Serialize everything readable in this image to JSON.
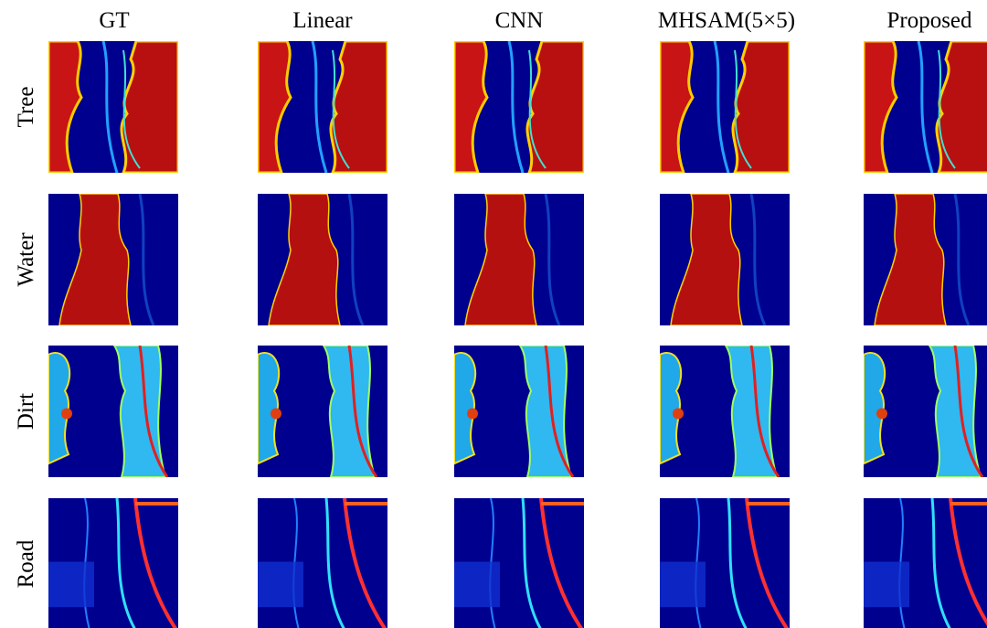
{
  "columns": [
    "GT",
    "Linear",
    "CNN",
    "MHSAM(5×5)",
    "Proposed"
  ],
  "rows": [
    "Tree",
    "Water",
    "Dirt",
    "Road"
  ]
}
